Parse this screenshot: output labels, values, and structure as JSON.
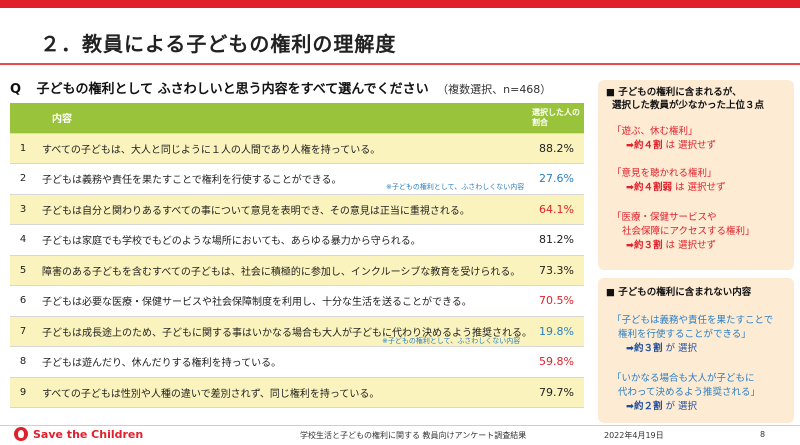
{
  "title": "２．教員による子どもの権利の理解度",
  "question": {
    "marker": "Q",
    "text": "子どもの権利として ふさわしいと思う内容をすべて選んでください",
    "note": "（複数選択、n=468）"
  },
  "table": {
    "header": {
      "num": "",
      "content": "内容",
      "rate": "選択した人の割合"
    },
    "rows": [
      {
        "num": "1",
        "content": "すべての子どもは、大人と同じように１人の人間であり人権を持っている。",
        "rate": "88.2%",
        "color": "black"
      },
      {
        "num": "2",
        "content": "子どもは義務や責任を果たすことで権利を行使することができる。",
        "rate": "27.6%",
        "color": "blue",
        "note": "※子どもの権利として、ふさわしくない内容"
      },
      {
        "num": "3",
        "content": "子どもは自分と関わりあるすべての事について意見を表明でき、その意見は正当に重視される。",
        "rate": "64.1%",
        "color": "red"
      },
      {
        "num": "4",
        "content": "子どもは家庭でも学校でもどのような場所においても、あらゆる暴力から守られる。",
        "rate": "81.2%",
        "color": "black"
      },
      {
        "num": "5",
        "content": "障害のある子どもを含むすべての子どもは、社会に積極的に参加し、インクルーシブな教育を受けられる。",
        "rate": "73.3%",
        "color": "black"
      },
      {
        "num": "6",
        "content": "子どもは必要な医療・保健サービスや社会保障制度を利用し、十分な生活を送ることができる。",
        "rate": "70.5%",
        "color": "red"
      },
      {
        "num": "7",
        "content": "子どもは成長途上のため、子どもに関する事はいかなる場合も大人が子どもに代わり決めるよう推奨される。",
        "rate": "19.8%",
        "color": "blue",
        "note": "※子どもの権利として、ふさわしくない内容"
      },
      {
        "num": "8",
        "content": "子どもは遊んだり、休んだりする権利を持っている。",
        "rate": "59.8%",
        "color": "red"
      },
      {
        "num": "9",
        "content": "すべての子どもは性別や人種の違いで差別されず、同じ権利を持っている。",
        "rate": "79.7%",
        "color": "black"
      }
    ]
  },
  "box1": {
    "heading1": "■ 子どもの権利に含まれるが、",
    "heading2": "選択した教員が少なかった上位３点",
    "items": [
      {
        "quote": "「遊ぶ、休む権利」",
        "arrow": "➡約４割",
        "rest": "は 選択せず"
      },
      {
        "quote": "「意見を聴かれる権利」",
        "arrow": "➡約４割弱",
        "rest": "は 選択せず"
      },
      {
        "quote1": "「医療・保健サービスや",
        "quote2": "社会保障にアクセスする権利」",
        "arrow": "➡約３割",
        "rest": "は 選択せず"
      }
    ]
  },
  "box2": {
    "heading": "■ 子どもの権利に含まれない内容",
    "items": [
      {
        "quote1": "「子どもは義務や責任を果たすことで",
        "quote2": "権利を行使することができる」",
        "arrow": "➡約３割",
        "rest": "が 選択"
      },
      {
        "quote1": "「いかなる場合も大人が子どもに",
        "quote2": "代わって決めるよう推奨される」",
        "arrow": "➡約２割",
        "rest": "が 選択"
      }
    ]
  },
  "footer": {
    "logo": "Save the Children",
    "center": "学校生活と子どもの権利に関する 教員向けアンケート調査結果",
    "date": "2022年4月19日",
    "page": "8"
  },
  "colors": {
    "accent": "#e0212b",
    "header_green": "#9ac33c",
    "row_yellow": "#fbf3bd",
    "box_peach": "#fdebd4",
    "blue": "#2a7fc4"
  }
}
